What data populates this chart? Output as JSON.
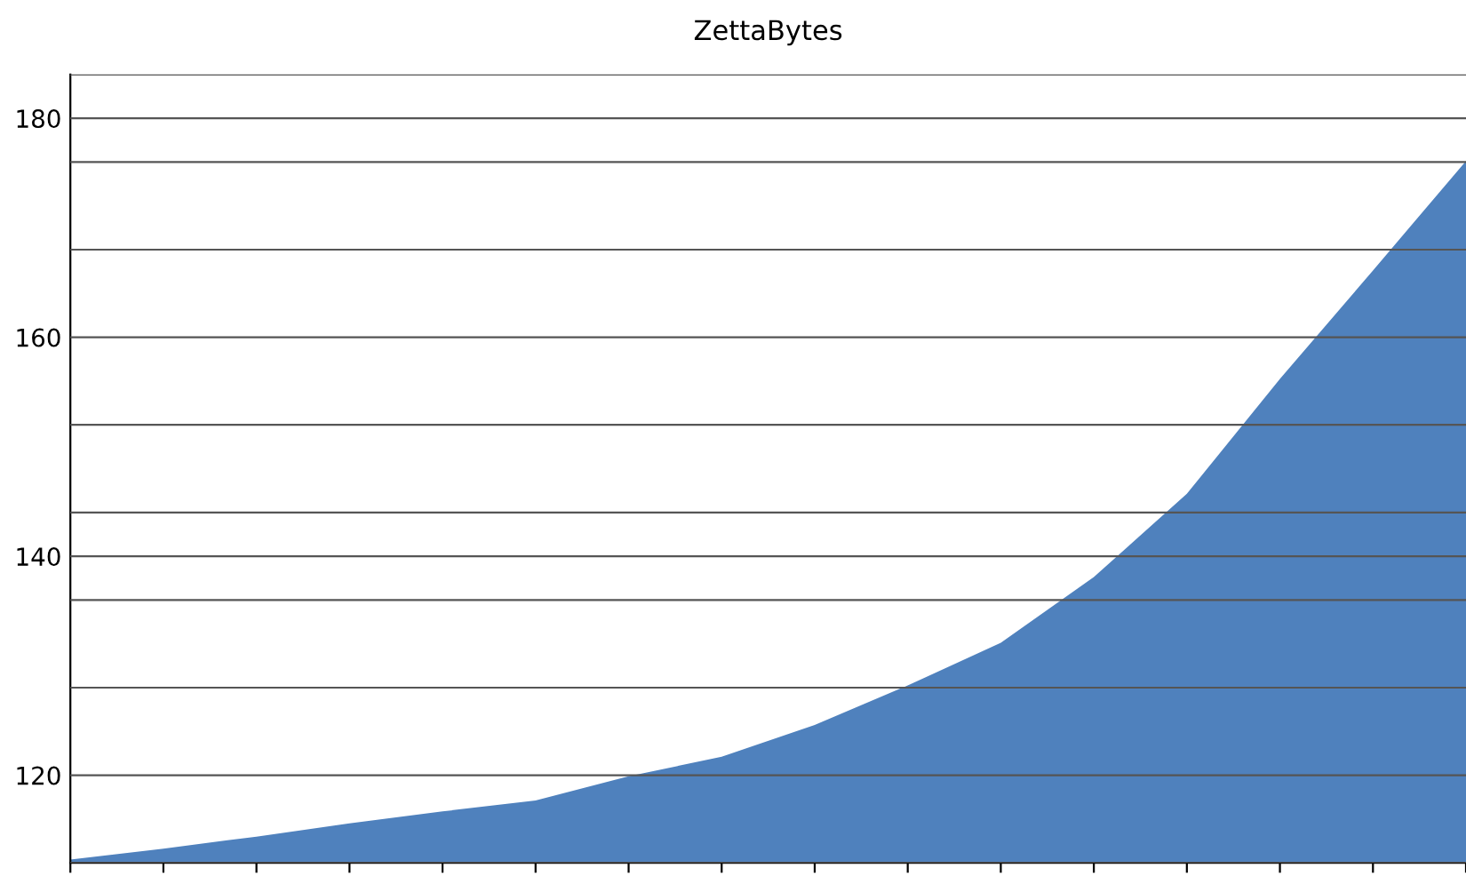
{
  "chart_data": {
    "type": "area",
    "title": "ZettaBytes",
    "categories": [
      null,
      null,
      null,
      null,
      null,
      null,
      null,
      null,
      null,
      null,
      null,
      null,
      null,
      null,
      null,
      null
    ],
    "series": [
      {
        "color": "#4f81bd",
        "values": [
          112.3,
          113.3,
          114.4,
          115.6,
          116.7,
          117.7,
          119.9,
          121.7,
          124.6,
          128.2,
          132.1,
          138.1,
          145.7,
          156.2,
          166.1,
          176.1
        ]
      }
    ],
    "ylim": [
      112,
      184
    ],
    "yticks": [
      {
        "value": 112,
        "label": null
      },
      120,
      {
        "value": 128,
        "label": null
      },
      {
        "value": 136,
        "label": null
      },
      140,
      {
        "value": 144,
        "label": null
      },
      {
        "value": 152,
        "label": null
      },
      160,
      {
        "value": 168,
        "label": null
      },
      {
        "value": 176,
        "label": null
      },
      180,
      {
        "value": 184,
        "label": null
      }
    ],
    "grid": "y"
  }
}
